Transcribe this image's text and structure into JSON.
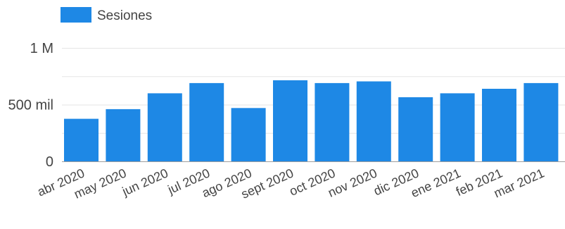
{
  "chart_data": {
    "type": "bar",
    "legend": {
      "position": "top-left",
      "label": "Sesiones",
      "color": "#1e88e5"
    },
    "series": [
      {
        "name": "Sesiones",
        "color": "#1e88e5",
        "values": [
          375000,
          460000,
          600000,
          690000,
          470000,
          715000,
          690000,
          705000,
          565000,
          600000,
          640000,
          690000
        ]
      }
    ],
    "categories": [
      "abr 2020",
      "may 2020",
      "jun 2020",
      "jul 2020",
      "ago 2020",
      "sept 2020",
      "oct 2020",
      "nov 2020",
      "dic 2020",
      "ene 2021",
      "feb 2021",
      "mar 2021"
    ],
    "ylim": [
      0,
      1000000
    ],
    "y_ticks": [
      {
        "value": 0,
        "label": "0"
      },
      {
        "value": 500000,
        "label": "500 mil"
      },
      {
        "value": 1000000,
        "label": "1 M"
      }
    ],
    "minor_gridlines": [
      250000,
      750000
    ],
    "grid": true
  }
}
